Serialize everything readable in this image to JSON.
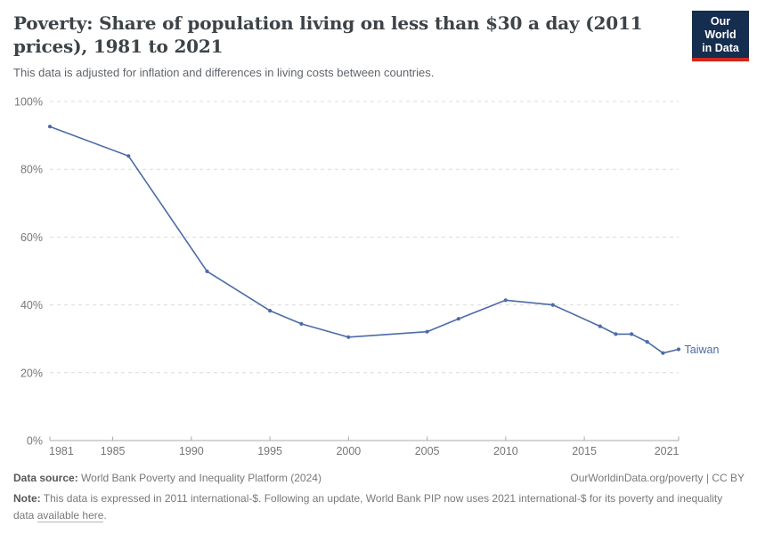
{
  "header": {
    "title_line1": "Poverty: Share of population living on less than $30 a day (2011",
    "title_line2": "prices), 1981 to 2021",
    "subtitle": "This data is adjusted for inflation and differences in living costs between countries.",
    "logo": {
      "line1": "Our World",
      "line2": "in Data"
    }
  },
  "chart_data": {
    "type": "line",
    "title": "Poverty: Share of population living on less than $30 a day (2011 prices), 1981 to 2021",
    "series": [
      {
        "name": "Taiwan",
        "color": "#4c6ba7",
        "x": [
          1981,
          1986,
          1991,
          1995,
          1997,
          2000,
          2005,
          2007,
          2010,
          2013,
          2016,
          2017,
          2018,
          2019,
          2020,
          2021
        ],
        "values": [
          92.6,
          83.9,
          49.9,
          38.3,
          34.4,
          30.5,
          32.1,
          35.9,
          41.4,
          40.0,
          33.7,
          31.4,
          31.4,
          29.1,
          25.8,
          26.9
        ]
      }
    ],
    "x_ticks": [
      1981,
      1985,
      1990,
      1995,
      2000,
      2005,
      2010,
      2015,
      2021
    ],
    "y_ticks": [
      {
        "value": 0,
        "label": "0%"
      },
      {
        "value": 20,
        "label": "20%"
      },
      {
        "value": 40,
        "label": "40%"
      },
      {
        "value": 60,
        "label": "60%"
      },
      {
        "value": 80,
        "label": "80%"
      },
      {
        "value": 100,
        "label": "100%"
      }
    ],
    "xlim": [
      1981,
      2021
    ],
    "ylim": [
      0,
      100
    ],
    "grid": "horizontal-dashed",
    "legend_position": "end-of-line"
  },
  "colors": {
    "line": "#4c6ba7",
    "grid": "#dcdcdc",
    "axis": "#a7aaac",
    "tick_text": "#74777a"
  },
  "footer": {
    "source_label": "Data source:",
    "source_text": " World Bank Poverty and Inequality Platform (2024)",
    "rights": "OurWorldinData.org/poverty | CC BY",
    "note_label": "Note:",
    "note_text_1": " This data is expressed in 2011 international-$. Following an update, World Bank PIP now uses 2021 international-$ for its poverty and inequality data ",
    "note_link": "available here",
    "note_text_2": "."
  }
}
